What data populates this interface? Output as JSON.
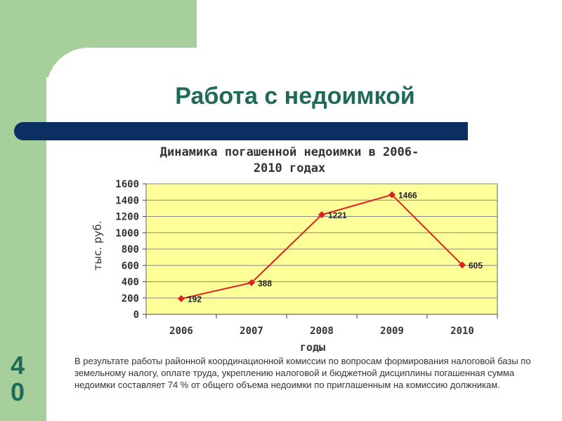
{
  "slide": {
    "title": "Работа с недоимкой",
    "page_digits": [
      "4",
      "0"
    ],
    "caption": "В результате работы районной координационной комиссии по вопросам формирования налоговой базы по земельному налогу, оплате труда, укреплению налоговой и бюджетной дисциплины погашенная сумма недоимки составляет 74 % от общего объема недоимки по приглашенным на комиссию должникам."
  },
  "colors": {
    "accent_green": "#a7cf9b",
    "title_text": "#1f6b57",
    "title_bar": "#0b2f63",
    "plot_fill": "#ffff99",
    "series_line": "#e02020"
  },
  "chart_data": {
    "type": "line",
    "title_lines": [
      "Динамика погашенной недоимки в 2006-",
      "2010 годах"
    ],
    "xlabel": "годы",
    "ylabel": "тыс. руб.",
    "categories": [
      "2006",
      "2007",
      "2008",
      "2009",
      "2010"
    ],
    "values": [
      192,
      388,
      1221,
      1466,
      605
    ],
    "data_labels": [
      "192",
      "388",
      "1221",
      "1466",
      "605"
    ],
    "ylim": [
      0,
      1600
    ],
    "yticks": [
      0,
      200,
      400,
      600,
      800,
      1000,
      1200,
      1400,
      1600
    ],
    "grid": true,
    "legend": "none"
  }
}
